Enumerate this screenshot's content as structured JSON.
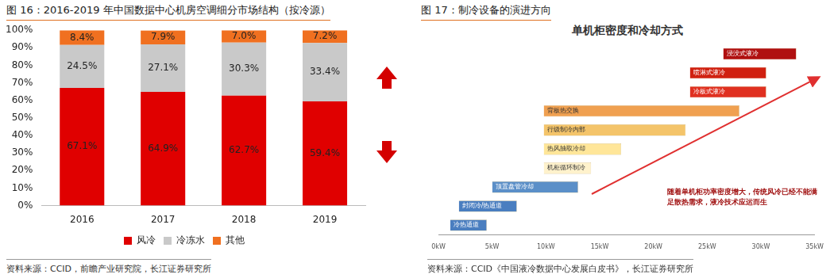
{
  "chart_data": [
    {
      "type": "bar",
      "title": "图 16：2016-2019 年中国数据中心机房空调细分市场结构（按冷源）",
      "source": "资料来源：CCID，前瞻产业研究院，长江证券研究所",
      "categories": [
        "2016",
        "2017",
        "2018",
        "2019"
      ],
      "series": [
        {
          "name": "风冷",
          "color": "#e00000",
          "values": [
            67.1,
            64.9,
            62.7,
            59.4
          ],
          "value_labels": [
            "67.1%",
            "64.9%",
            "62.7%",
            "59.4%"
          ]
        },
        {
          "name": "冷冻水",
          "color": "#c9c9c9",
          "values": [
            24.5,
            27.1,
            30.3,
            33.4
          ],
          "value_labels": [
            "24.5%",
            "27.1%",
            "30.3%",
            "33.4%"
          ]
        },
        {
          "name": "其他",
          "color": "#f07020",
          "values": [
            8.4,
            7.9,
            7.0,
            7.2
          ],
          "value_labels": [
            "8.4%",
            "7.9%",
            "7.0%",
            "7.2%"
          ]
        }
      ],
      "stacked": true,
      "data_labels": true,
      "legend": "bottom",
      "grid": false,
      "ylim": [
        0,
        100
      ],
      "yticks": [
        {
          "value": 0,
          "label": "0%"
        },
        {
          "value": 10,
          "label": "10%"
        },
        {
          "value": 20,
          "label": "20%"
        },
        {
          "value": 30,
          "label": "30%"
        },
        {
          "value": 40,
          "label": "40%"
        },
        {
          "value": 50,
          "label": "50%"
        },
        {
          "value": 60,
          "label": "60%"
        },
        {
          "value": 70,
          "label": "70%"
        },
        {
          "value": 80,
          "label": "80%"
        },
        {
          "value": 90,
          "label": "90%"
        },
        {
          "value": 100,
          "label": "100%"
        }
      ]
    },
    {
      "type": "bar",
      "title": "图 17：制冷设备的演进方向",
      "subtitle": "单机柜密度和冷却方式",
      "source": "资料来源：CCID《中国液冷数据中心发展白皮书》，长江证券研究所",
      "annotations": [
        "随着单机柜功率密度增大，传统风冷已经不能满足散热需求，液冷技术应运而生"
      ],
      "orientation": "horizontal",
      "categories": [
        "浸没式液冷",
        "喷淋式液冷",
        "冷板式液冷",
        "背板热交换",
        "行级制冷内部",
        "热风抽取冷却",
        "机柜循环制冷",
        "顶置盘管冷却",
        "封闭冷/热通道",
        "冷热通道"
      ],
      "values": [
        [
          26.5,
          33.3
        ],
        [
          23.4,
          30.5
        ],
        [
          23.4,
          30.5
        ],
        [
          9.8,
          28
        ],
        [
          9.8,
          23
        ],
        [
          9.8,
          17
        ],
        [
          9.8,
          14.2
        ],
        [
          5,
          13
        ],
        [
          1.9,
          7.3
        ],
        [
          1.1,
          4.5
        ]
      ],
      "colors": [
        "#b01010",
        "#d02010",
        "#e03020",
        "#f0a050",
        "#f4c46a",
        "#ffe699",
        "#fff2cc",
        "#5b8fc8",
        "#4a7ec0",
        "#4a7ec0"
      ],
      "grid": false,
      "tick_labels": "x",
      "xlim": [
        0,
        35
      ],
      "xticks": [
        {
          "value": 0,
          "label": "0kW"
        },
        {
          "value": 5,
          "label": "5kW"
        },
        {
          "value": 10,
          "label": "10kW"
        },
        {
          "value": 15,
          "label": "15kW"
        },
        {
          "value": 20,
          "label": "20kW"
        },
        {
          "value": 25,
          "label": "25kW"
        },
        {
          "value": 30,
          "label": "30kW"
        },
        {
          "value": 35,
          "label": "35kW"
        }
      ]
    }
  ]
}
